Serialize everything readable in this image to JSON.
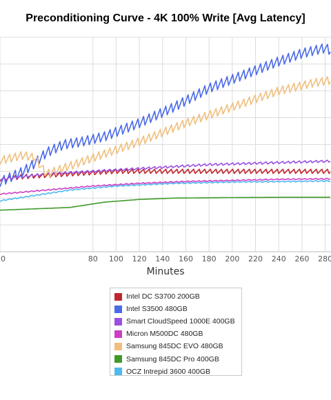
{
  "chart_data": {
    "type": "line",
    "title": "Preconditioning Curve - 4K 100% Write [Avg Latency]",
    "xlabel": "Minutes",
    "ylabel": "",
    "xlim": [
      0,
      285
    ],
    "ylim": [
      0,
      8
    ],
    "x_ticks": [
      0,
      80,
      100,
      120,
      140,
      160,
      180,
      200,
      220,
      240,
      260,
      280
    ],
    "y_grid_count": 8,
    "grid": true,
    "legend_position": "bottom-center",
    "series": [
      {
        "name": "Intel DC S3700 200GB",
        "color": "#c0262d",
        "jitter": 0.16,
        "x": [
          0,
          20,
          40,
          60,
          80,
          100,
          140,
          200,
          240,
          285
        ],
        "y": [
          2.7,
          2.8,
          2.85,
          2.9,
          2.95,
          3.0,
          3.0,
          3.0,
          3.0,
          3.0
        ]
      },
      {
        "name": "Intel S3500 480GB",
        "color": "#4a6ae8",
        "jitter": 0.35,
        "x": [
          0,
          20,
          30,
          40,
          55,
          70,
          90,
          120,
          150,
          180,
          210,
          240,
          260,
          280,
          285
        ],
        "y": [
          2.6,
          3.0,
          3.3,
          3.7,
          4.0,
          4.1,
          4.3,
          4.8,
          5.4,
          6.1,
          6.6,
          7.1,
          7.4,
          7.6,
          7.5
        ]
      },
      {
        "name": "Smart CloudSpeed 1000E 400GB",
        "color": "#9b4fe0",
        "jitter": 0.08,
        "x": [
          0,
          40,
          80,
          100,
          140,
          180,
          220,
          260,
          285
        ],
        "y": [
          2.7,
          2.9,
          3.0,
          3.05,
          3.15,
          3.25,
          3.3,
          3.35,
          3.38
        ]
      },
      {
        "name": "Micron M500DC 480GB",
        "color": "#cc3ec4",
        "jitter": 0.04,
        "x": [
          0,
          40,
          80,
          120,
          160,
          200,
          240,
          285
        ],
        "y": [
          2.15,
          2.3,
          2.45,
          2.55,
          2.62,
          2.66,
          2.7,
          2.72
        ]
      },
      {
        "name": "Samsung 845DC EVO 480GB",
        "color": "#f0bf7e",
        "jitter": 0.3,
        "x": [
          0,
          10,
          20,
          30,
          40,
          60,
          80,
          120,
          160,
          200,
          240,
          270,
          285
        ],
        "y": [
          3.4,
          3.5,
          3.6,
          3.5,
          2.9,
          3.2,
          3.5,
          4.1,
          4.8,
          5.4,
          6.0,
          6.3,
          6.4
        ]
      },
      {
        "name": "Samsung 845DC Pro 400GB",
        "color": "#3f9a28",
        "jitter": 0,
        "x": [
          0,
          30,
          60,
          90,
          120,
          150,
          200,
          250,
          285
        ],
        "y": [
          1.55,
          1.6,
          1.65,
          1.85,
          1.95,
          2.0,
          2.02,
          2.03,
          2.03
        ]
      },
      {
        "name": "OCZ Intrepid 3600 400GB",
        "color": "#4fb8ee",
        "jitter": 0.04,
        "x": [
          0,
          30,
          60,
          100,
          150,
          200,
          250,
          285
        ],
        "y": [
          1.9,
          2.1,
          2.3,
          2.45,
          2.55,
          2.6,
          2.62,
          2.64
        ]
      }
    ]
  }
}
